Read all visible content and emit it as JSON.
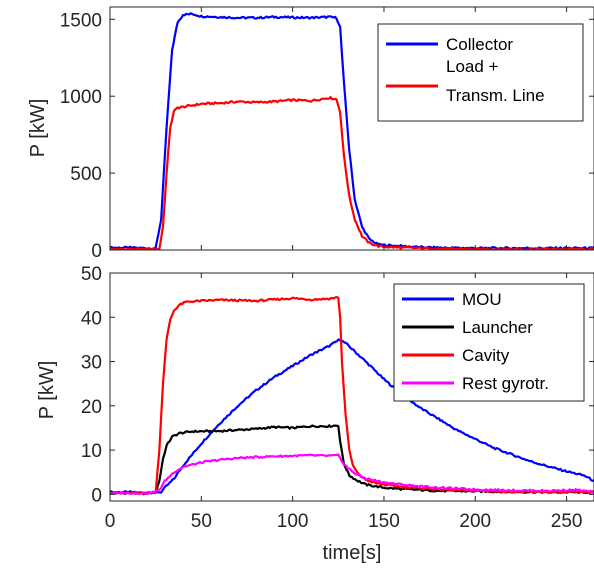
{
  "chart_data": [
    {
      "type": "line",
      "title": "",
      "xlabel": "",
      "ylabel": "P [kW]",
      "xlim": [
        0,
        265
      ],
      "ylim": [
        0,
        1580
      ],
      "xticks": [
        0,
        50,
        100,
        150,
        200,
        250
      ],
      "yticks": [
        0,
        500,
        1000,
        1500
      ],
      "show_xtick_labels": false,
      "grid": false,
      "legend_position": "top-right",
      "series": [
        {
          "name": "Collector",
          "color": "#0000FF",
          "x": [
            0,
            10,
            20,
            25,
            28,
            31,
            34,
            37,
            40,
            45,
            50,
            60,
            70,
            80,
            90,
            100,
            110,
            120,
            124,
            126,
            128,
            131,
            134,
            138,
            142,
            147,
            152,
            160,
            170,
            180,
            200,
            220,
            240,
            265
          ],
          "y": [
            15,
            15,
            12,
            10,
            200,
            800,
            1300,
            1480,
            1530,
            1535,
            1520,
            1515,
            1510,
            1510,
            1515,
            1512,
            1510,
            1515,
            1510,
            1450,
            1100,
            650,
            330,
            150,
            70,
            35,
            30,
            25,
            18,
            15,
            12,
            12,
            12,
            12
          ]
        },
        {
          "name": "Load +\nTransm. Line",
          "color": "#FF0000",
          "x": [
            0,
            10,
            20,
            27,
            29,
            31,
            33,
            35,
            37,
            40,
            45,
            50,
            60,
            70,
            80,
            90,
            100,
            110,
            120,
            124,
            126,
            128,
            131,
            134,
            138,
            142,
            147,
            152,
            160,
            170,
            180,
            200,
            220,
            240,
            265
          ],
          "y": [
            5,
            5,
            5,
            5,
            150,
            500,
            800,
            900,
            925,
            930,
            940,
            950,
            955,
            965,
            960,
            965,
            975,
            970,
            990,
            980,
            900,
            620,
            350,
            200,
            90,
            45,
            25,
            20,
            15,
            12,
            8,
            5,
            5,
            5,
            5
          ]
        }
      ]
    },
    {
      "type": "line",
      "title": "",
      "xlabel": "time[s]",
      "ylabel": "P [kW]",
      "xlim": [
        0,
        265
      ],
      "ylim": [
        -1.5,
        50
      ],
      "xticks": [
        0,
        50,
        100,
        150,
        200,
        250
      ],
      "yticks": [
        0,
        10,
        20,
        30,
        40,
        50
      ],
      "show_xtick_labels": true,
      "grid": false,
      "legend_position": "top-right",
      "series": [
        {
          "name": "MOU",
          "color": "#0000FF",
          "x": [
            0,
            10,
            20,
            25,
            28,
            30,
            35,
            40,
            50,
            60,
            70,
            80,
            90,
            100,
            110,
            120,
            125,
            126,
            130,
            140,
            150,
            160,
            170,
            180,
            190,
            200,
            210,
            220,
            230,
            240,
            250,
            260,
            265
          ],
          "y": [
            0.5,
            0.5,
            0.3,
            0.5,
            0.5,
            1.5,
            3.5,
            6.5,
            11.5,
            16,
            20,
            23.5,
            26.5,
            29,
            31.5,
            33.5,
            34.8,
            35,
            33.8,
            30,
            26,
            22.5,
            19.5,
            17,
            14.5,
            12.5,
            10.5,
            9,
            7.5,
            6.3,
            5.2,
            4.2,
            3
          ]
        },
        {
          "name": "Launcher",
          "color": "#000000",
          "x": [
            0,
            10,
            20,
            25,
            27,
            29,
            31,
            34,
            38,
            45,
            60,
            80,
            90,
            100,
            110,
            120,
            125,
            126,
            128,
            131,
            135,
            140,
            150,
            160,
            170,
            180,
            200,
            220,
            240,
            265
          ],
          "y": [
            0.3,
            0.3,
            0.2,
            0.5,
            3,
            8,
            11,
            13,
            13.8,
            14.2,
            14.3,
            14.8,
            15.2,
            15.0,
            15.4,
            15.4,
            15.6,
            12,
            7,
            4.3,
            3.2,
            2.2,
            1.5,
            1.2,
            1.0,
            0.8,
            0.7,
            0.6,
            0.5,
            0.5
          ]
        },
        {
          "name": "Cavity",
          "color": "#FF0000",
          "x": [
            0,
            10,
            20,
            25,
            27,
            29,
            31,
            33,
            35,
            38,
            42,
            50,
            60,
            70,
            80,
            90,
            100,
            110,
            120,
            125,
            126,
            127,
            129,
            131,
            133,
            136,
            140,
            145,
            150,
            160,
            170,
            180,
            200,
            220,
            240,
            265
          ],
          "y": [
            0.3,
            0.3,
            0.3,
            0.5,
            10,
            25,
            35,
            39.5,
            41.5,
            42.8,
            43.5,
            43.7,
            43.9,
            43.8,
            43.7,
            44.0,
            44.3,
            44.0,
            44.2,
            44.5,
            40,
            30,
            18,
            10,
            6.5,
            4.5,
            3.3,
            2.6,
            2.2,
            1.7,
            1.4,
            1.1,
            0.8,
            0.6,
            0.5,
            0.5
          ]
        },
        {
          "name": "Rest gyrotr.",
          "color": "#FF00FF",
          "x": [
            0,
            10,
            20,
            25,
            28,
            30,
            35,
            40,
            50,
            60,
            70,
            80,
            90,
            100,
            110,
            120,
            125,
            127,
            130,
            135,
            140,
            150,
            160,
            170,
            180,
            200,
            220,
            240,
            255,
            265
          ],
          "y": [
            0.3,
            0.3,
            0.3,
            0.5,
            1.5,
            3,
            5,
            6.2,
            7.2,
            7.8,
            8.2,
            8.4,
            8.6,
            8.7,
            8.8,
            8.7,
            8.8,
            7.5,
            6,
            4.5,
            3.6,
            2.7,
            2.2,
            1.8,
            1.5,
            1.1,
            0.9,
            0.8,
            1.0,
            0.5
          ]
        }
      ]
    }
  ]
}
